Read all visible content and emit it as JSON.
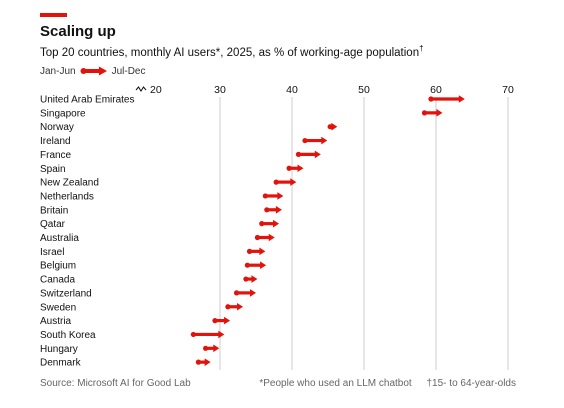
{
  "header": {
    "title": "Scaling up",
    "subtitle": "Top 20 countries, monthly AI users*, 2025, as % of working-age population",
    "subtitle_mark": "†"
  },
  "legend": {
    "from_label": "Jan-Jun",
    "to_label": "Jul-Dec"
  },
  "footer": {
    "source": "Source: Microsoft AI for Good Lab",
    "note_star": "*People who used an LLM chatbot",
    "note_dagger": "†15- to 64-year-olds"
  },
  "colors": {
    "accent": "#e3120b",
    "arrow": "#e3120b",
    "grid": "#cccccc"
  },
  "chart_data": {
    "type": "arrow-range",
    "title": "Scaling up",
    "xlim": [
      20,
      70
    ],
    "xticks": [
      20,
      30,
      40,
      50,
      60,
      70
    ],
    "xticks_labels": [
      "20",
      "30",
      "40",
      "50",
      "60",
      "70"
    ],
    "axis_break": true,
    "grid": true,
    "series": [
      {
        "name": "Jan-Jun",
        "values": [
          59.3,
          58.4,
          45.3,
          41.8,
          40.9,
          39.6,
          37.8,
          36.3,
          36.5,
          35.8,
          35.2,
          34.1,
          33.8,
          33.6,
          32.3,
          31.1,
          29.3,
          26.3,
          28.0,
          27.0
        ]
      },
      {
        "name": "Jul-Dec",
        "values": [
          64.0,
          60.9,
          46.3,
          44.9,
          44.0,
          41.6,
          40.6,
          38.8,
          38.6,
          38.2,
          37.6,
          36.3,
          36.4,
          35.2,
          35.0,
          33.2,
          31.4,
          30.6,
          29.9,
          28.7
        ]
      }
    ],
    "categories": [
      "United Arab Emirates",
      "Singapore",
      "Norway",
      "Ireland",
      "France",
      "Spain",
      "New Zealand",
      "Netherlands",
      "Britain",
      "Qatar",
      "Australia",
      "Israel",
      "Belgium",
      "Canada",
      "Switzerland",
      "Sweden",
      "Austria",
      "South Korea",
      "Hungary",
      "Denmark"
    ]
  }
}
